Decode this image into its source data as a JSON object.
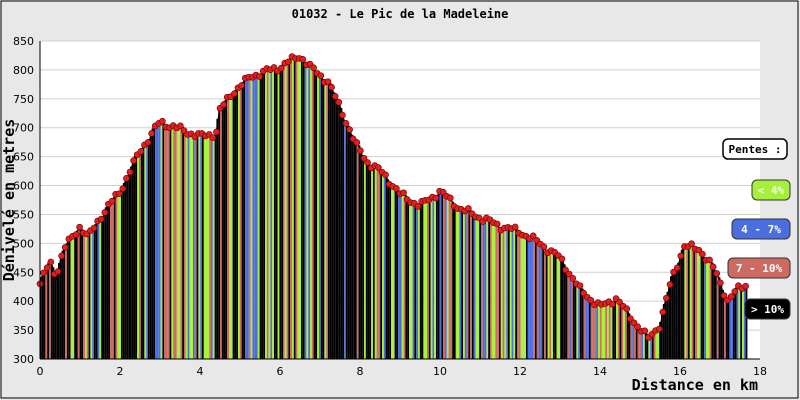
{
  "chart_data": {
    "type": "area",
    "title": "01032 - Le Pic de la Madeleine",
    "xlabel": "Distance en km",
    "ylabel": "Dénivelé en metres",
    "xlim": [
      0,
      18
    ],
    "ylim": [
      300,
      850
    ],
    "x_ticks": [
      0,
      2,
      4,
      6,
      8,
      10,
      12,
      14,
      16,
      18
    ],
    "y_ticks": [
      300,
      350,
      400,
      450,
      500,
      550,
      600,
      650,
      700,
      750,
      800,
      850
    ],
    "grid": "horizontal",
    "profile": {
      "x": [
        0,
        0.25,
        0.4,
        0.6,
        1.0,
        1.2,
        1.5,
        2.0,
        2.5,
        3.0,
        3.4,
        3.8,
        4.0,
        4.4,
        4.5,
        4.8,
        5.3,
        6.0,
        6.5,
        6.75,
        7.2,
        7.6,
        7.9,
        8.2,
        8.6,
        9.0,
        9.5,
        10.0,
        10.5,
        11.0,
        11.5,
        12.0,
        12.5,
        13.0,
        13.5,
        14.0,
        14.4,
        14.8,
        15.2,
        15.5,
        15.8,
        16.1,
        16.5,
        16.9,
        17.2,
        17.5,
        17.7
      ],
      "y": [
        430,
        468,
        445,
        490,
        530,
        510,
        545,
        590,
        660,
        710,
        700,
        690,
        685,
        690,
        730,
        760,
        790,
        805,
        825,
        805,
        780,
        720,
        670,
        640,
        620,
        585,
        565,
        590,
        560,
        545,
        530,
        520,
        500,
        475,
        420,
        390,
        405,
        370,
        335,
        360,
        440,
        495,
        490,
        450,
        400,
        425,
        430
      ]
    },
    "slope_colors": {
      "lt4": "#a6f03c",
      "4to7": "#4a6ee0",
      "7to10": "#cd6a62",
      "gt10": "#000000"
    }
  },
  "legend": {
    "title": "Pentes :",
    "items": [
      {
        "label": "< 4%",
        "color": "#a6f03c",
        "text_color": "#ffffff"
      },
      {
        "label": "4 - 7%",
        "color": "#4a6ee0",
        "text_color": "#ffffff"
      },
      {
        "label": "7 - 10%",
        "color": "#cd6a62",
        "text_color": "#ffffff"
      },
      {
        "label": "> 10%",
        "color": "#000000",
        "text_color": "#ffffff"
      }
    ]
  },
  "colors": {
    "background": "#e8e8e8",
    "plot_background": "#ffffff",
    "grid": "#d0d0d0",
    "marker": "#e11f1f"
  }
}
